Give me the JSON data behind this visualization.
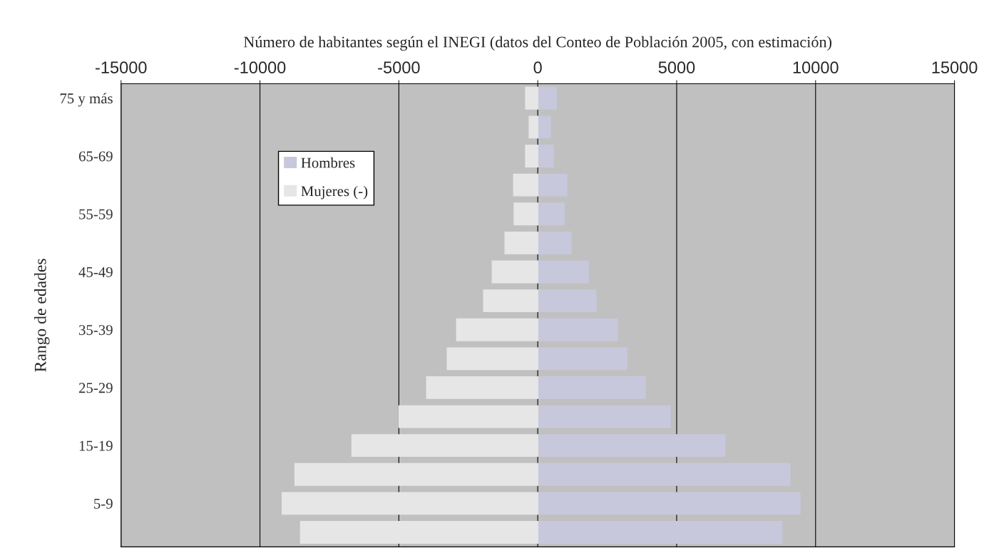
{
  "chart_data": {
    "type": "bar",
    "orientation": "horizontal",
    "xlabel": "Número de habitantes según el INEGI (datos del Conteo de Población 2005, con estimación)",
    "ylabel": "Rango de edades",
    "categories": [
      "75 y más",
      null,
      "65-69",
      null,
      "55-59",
      null,
      "45-49",
      null,
      "35-39",
      null,
      "25-29",
      null,
      "15-19",
      null,
      "5-9",
      null
    ],
    "series": [
      {
        "name": "Hombres",
        "color": "#c8c8dc",
        "values": [
          670,
          460,
          560,
          1050,
          950,
          1200,
          1820,
          2100,
          2870,
          3200,
          3870,
          4770,
          6740,
          9080,
          9440,
          8790
        ]
      },
      {
        "name": "Mujeres (-)",
        "color": "#e6e6e6",
        "values": [
          -440,
          -310,
          -440,
          -870,
          -850,
          -1180,
          -1640,
          -1950,
          -2920,
          -3260,
          -4000,
          -5000,
          -6690,
          -8740,
          -9200,
          -8540
        ]
      }
    ],
    "xlim": [
      -15000,
      15000
    ],
    "xticks": [
      -15000,
      -10000,
      -5000,
      0,
      5000,
      10000,
      15000
    ],
    "grid": "x",
    "stacked": true,
    "legend": "top left"
  }
}
